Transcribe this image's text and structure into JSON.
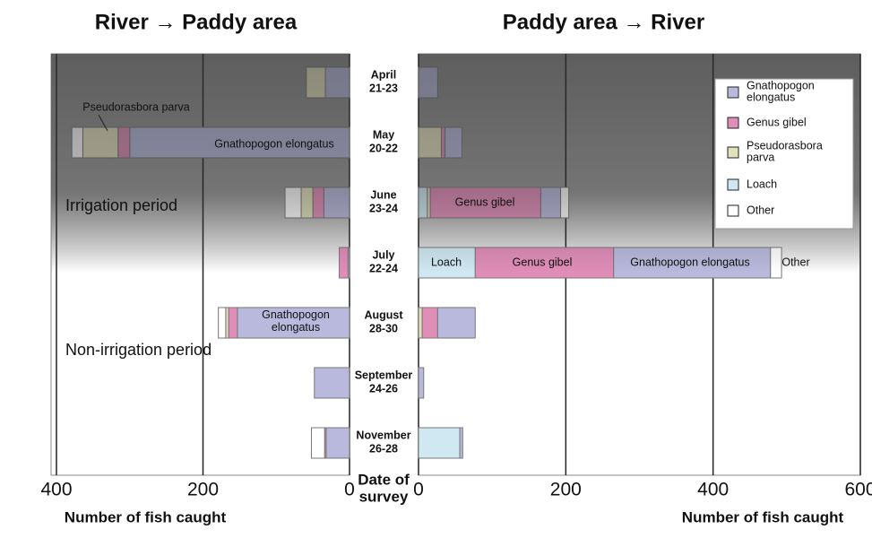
{
  "categories": [
    "April 21-23",
    "May 20-22",
    "June 23-24",
    "July 22-24",
    "August 28-30",
    "September 24-26",
    "November 26-28"
  ],
  "category_label": "Date of survey",
  "period_labels": [
    "Irrigation period",
    "Non-irrigation period"
  ],
  "chart_data": [
    {
      "type": "bar",
      "orientation": "horizontal",
      "stacked": true,
      "reversed": true,
      "title": "River → Paddy area",
      "x_label": "Number of fish caught",
      "xlim": [
        0,
        400
      ],
      "xticks": [
        0,
        200,
        400
      ],
      "grid": true,
      "series": [
        {
          "color": "#b9b9dd",
          "values": [
            33,
            300,
            35,
            2,
            153,
            48,
            32
          ]
        },
        {
          "color": "#e08db8",
          "values": [
            0,
            16,
            15,
            12,
            12,
            0,
            2
          ]
        },
        {
          "color": "#e3e0bc",
          "values": [
            26,
            48,
            16,
            0,
            4,
            0,
            0
          ]
        },
        {
          "color": "#cfe8f2",
          "values": [
            0,
            0,
            0,
            0,
            0,
            0,
            0
          ]
        },
        {
          "color": "#ffffff",
          "values": [
            0,
            15,
            22,
            0,
            10,
            0,
            18
          ]
        }
      ],
      "annotations": [
        "Pseudorasbora parva",
        "Gnathopogon elongatus",
        "Gnathopogon elongatus"
      ]
    },
    {
      "type": "bar",
      "orientation": "horizontal",
      "stacked": true,
      "reversed": false,
      "title": "Paddy area → River",
      "x_label": "Number of fish caught",
      "xlim": [
        0,
        600
      ],
      "xticks": [
        0,
        200,
        400,
        600
      ],
      "grid": true,
      "legend": "upper right",
      "series": [
        {
          "name": "Gnathopogon elongatus",
          "color": "#b9b9dd",
          "values": [
            26,
            23,
            27,
            213,
            51,
            7,
            4
          ]
        },
        {
          "name": "Genus gibel",
          "color": "#e08db8",
          "values": [
            0,
            5,
            150,
            188,
            21,
            0,
            0
          ]
        },
        {
          "name": "Pseudorasbora parva",
          "color": "#e3e0bc",
          "values": [
            0,
            31,
            4,
            0,
            5,
            0,
            0
          ]
        },
        {
          "name": "Loach",
          "color": "#cfe8f2",
          "values": [
            0,
            0,
            12,
            77,
            0,
            0,
            56
          ]
        },
        {
          "name": "Other",
          "color": "#ffffff",
          "values": [
            0,
            0,
            11,
            15,
            0,
            0,
            0
          ]
        }
      ],
      "annotations": [
        "Genus gibel",
        "Loach",
        "Genus gibel",
        "Gnathopogon elongatus",
        "Other"
      ]
    }
  ]
}
